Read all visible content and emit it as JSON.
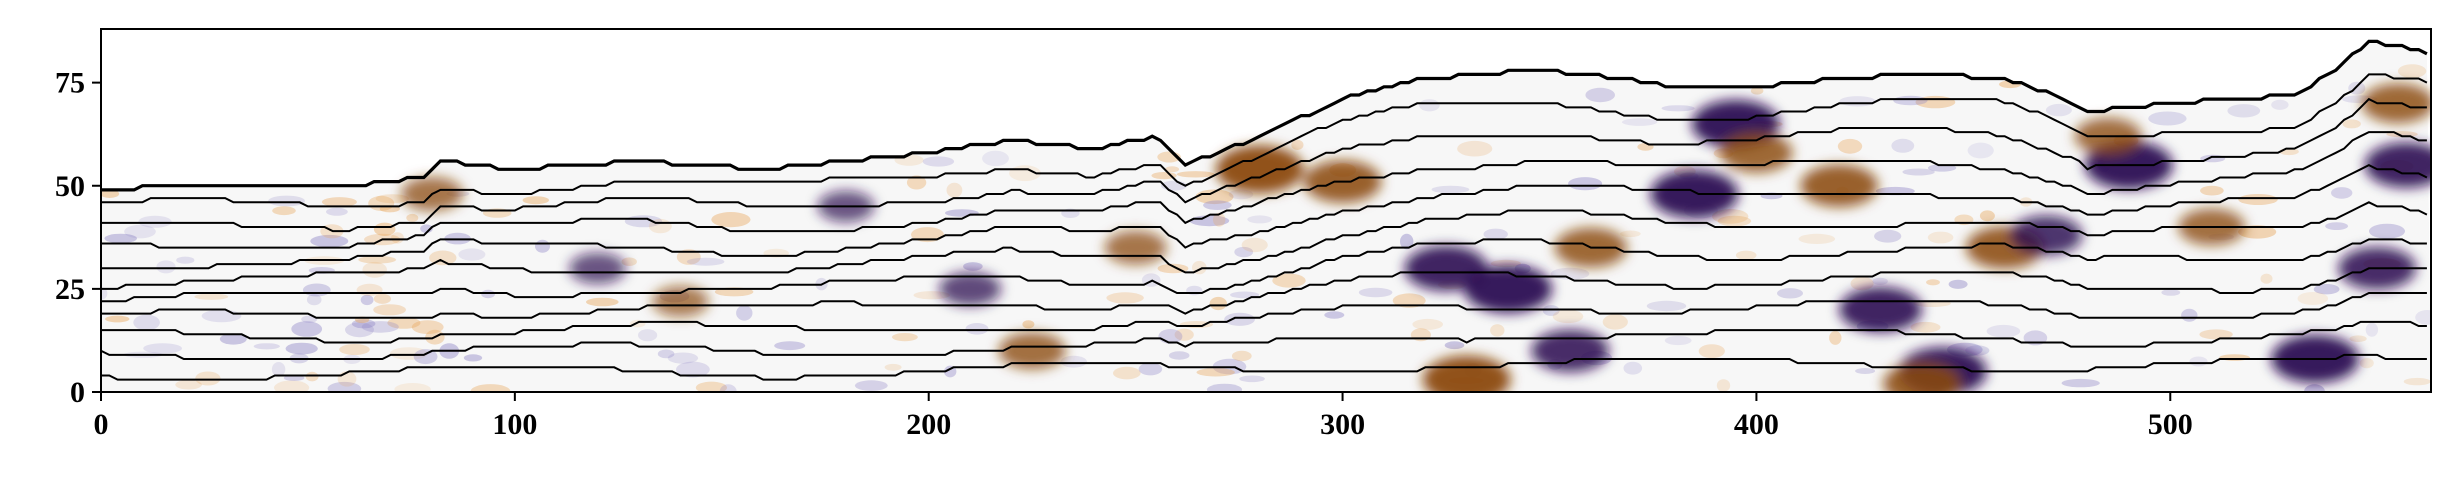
{
  "chart_data": {
    "type": "heatmap",
    "title": "",
    "xlabel": "",
    "ylabel": "",
    "xlim": [
      0,
      563
    ],
    "ylim": [
      0,
      88
    ],
    "x_ticks": [
      0,
      100,
      200,
      300,
      400,
      500
    ],
    "y_ticks": [
      0,
      25,
      50,
      75
    ],
    "x_tick_labels": [
      "0",
      "100",
      "200",
      "300",
      "400",
      "500"
    ],
    "y_tick_labels": [
      "0",
      "25",
      "50",
      "75"
    ],
    "grid": false,
    "colormap": "PuOr",
    "colors": {
      "positive": "#8b4a0a",
      "negative": "#2d0a52",
      "neutral": "#f7f7f7",
      "contour": "#000000"
    },
    "surface": {
      "x": [
        0,
        20,
        40,
        60,
        78,
        82,
        100,
        130,
        160,
        180,
        200,
        220,
        240,
        255,
        262,
        275,
        300,
        320,
        345,
        360,
        380,
        400,
        420,
        440,
        460,
        475,
        480,
        500,
        530,
        540,
        548,
        555,
        563
      ],
      "y": [
        49,
        50,
        50,
        50,
        52,
        56,
        54,
        56,
        54,
        56,
        58,
        61,
        59,
        62,
        55,
        60,
        71,
        76,
        78,
        77,
        74,
        74,
        76,
        77,
        76,
        71,
        68,
        70,
        72,
        78,
        85,
        84,
        82
      ]
    },
    "anomalies": [
      {
        "x": 280,
        "y": 54,
        "sign": "positive",
        "strength": 1.0
      },
      {
        "x": 300,
        "y": 51,
        "sign": "positive",
        "strength": 0.8
      },
      {
        "x": 330,
        "y": 3,
        "sign": "positive",
        "strength": 1.0
      },
      {
        "x": 325,
        "y": 30,
        "sign": "negative",
        "strength": 0.9
      },
      {
        "x": 340,
        "y": 25,
        "sign": "negative",
        "strength": 1.0
      },
      {
        "x": 355,
        "y": 10,
        "sign": "negative",
        "strength": 0.8
      },
      {
        "x": 360,
        "y": 35,
        "sign": "positive",
        "strength": 0.7
      },
      {
        "x": 385,
        "y": 48,
        "sign": "negative",
        "strength": 1.0
      },
      {
        "x": 395,
        "y": 65,
        "sign": "negative",
        "strength": 1.0
      },
      {
        "x": 400,
        "y": 58,
        "sign": "positive",
        "strength": 0.7
      },
      {
        "x": 420,
        "y": 50,
        "sign": "positive",
        "strength": 0.8
      },
      {
        "x": 430,
        "y": 20,
        "sign": "negative",
        "strength": 0.9
      },
      {
        "x": 445,
        "y": 5,
        "sign": "negative",
        "strength": 1.0
      },
      {
        "x": 440,
        "y": 2,
        "sign": "positive",
        "strength": 0.8
      },
      {
        "x": 460,
        "y": 35,
        "sign": "positive",
        "strength": 0.8
      },
      {
        "x": 470,
        "y": 38,
        "sign": "negative",
        "strength": 0.7
      },
      {
        "x": 490,
        "y": 55,
        "sign": "negative",
        "strength": 1.0
      },
      {
        "x": 485,
        "y": 62,
        "sign": "positive",
        "strength": 0.6
      },
      {
        "x": 510,
        "y": 40,
        "sign": "positive",
        "strength": 0.6
      },
      {
        "x": 535,
        "y": 8,
        "sign": "negative",
        "strength": 1.0
      },
      {
        "x": 550,
        "y": 30,
        "sign": "negative",
        "strength": 0.8
      },
      {
        "x": 557,
        "y": 55,
        "sign": "negative",
        "strength": 0.9
      },
      {
        "x": 555,
        "y": 70,
        "sign": "positive",
        "strength": 0.7
      },
      {
        "x": 225,
        "y": 10,
        "sign": "positive",
        "strength": 0.6
      },
      {
        "x": 210,
        "y": 25,
        "sign": "negative",
        "strength": 0.5
      },
      {
        "x": 140,
        "y": 22,
        "sign": "positive",
        "strength": 0.4
      },
      {
        "x": 120,
        "y": 30,
        "sign": "negative",
        "strength": 0.4
      },
      {
        "x": 80,
        "y": 48,
        "sign": "positive",
        "strength": 0.5
      },
      {
        "x": 180,
        "y": 45,
        "sign": "negative",
        "strength": 0.4
      },
      {
        "x": 250,
        "y": 35,
        "sign": "positive",
        "strength": 0.5
      }
    ]
  }
}
